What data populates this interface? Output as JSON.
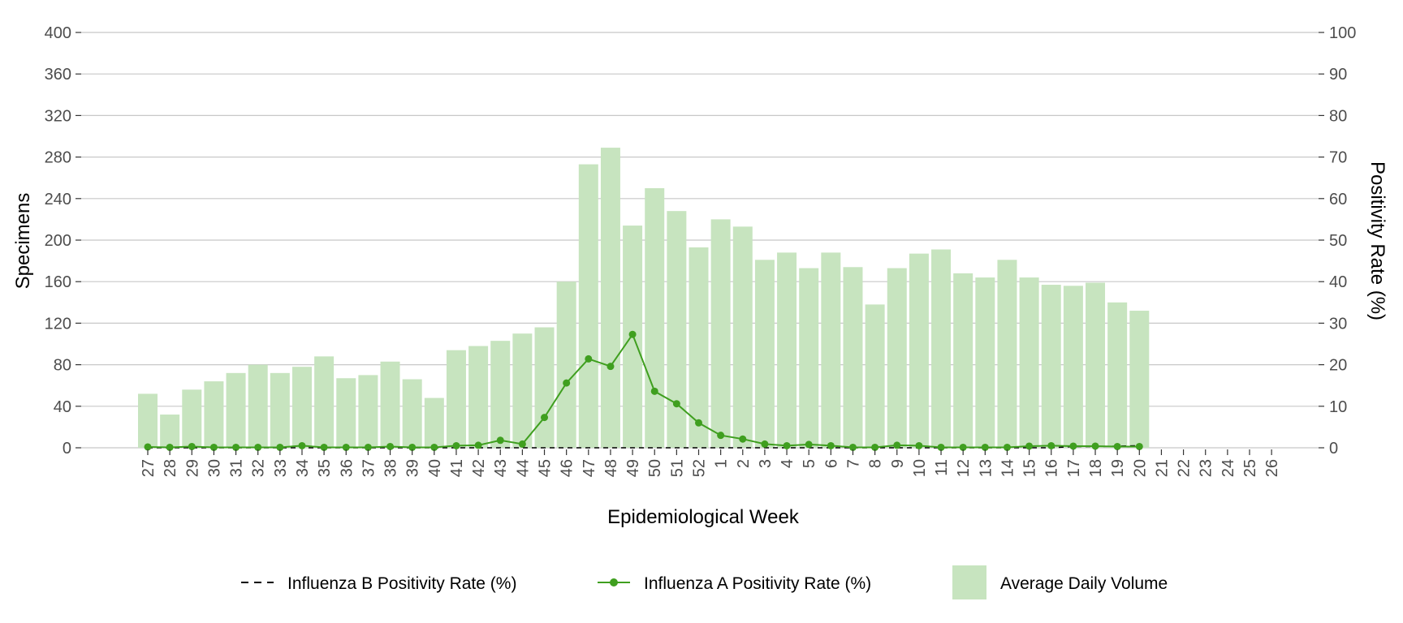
{
  "chart_data": {
    "type": "bar",
    "xlabel": "Epidemiological Week",
    "ylabel": "Specimens",
    "y2label": "Positivity Rate (%)",
    "ylim": [
      0,
      400
    ],
    "y2lim": [
      0,
      100
    ],
    "yticks": [
      "0",
      "40",
      "80",
      "120",
      "160",
      "200",
      "240",
      "280",
      "320",
      "360",
      "400"
    ],
    "y2ticks": [
      "0",
      "10",
      "20",
      "30",
      "40",
      "50",
      "60",
      "70",
      "80",
      "90",
      "100"
    ],
    "grid": true,
    "legend_position": "bottom",
    "categories": [
      "27",
      "28",
      "29",
      "30",
      "31",
      "32",
      "33",
      "34",
      "35",
      "36",
      "37",
      "38",
      "39",
      "40",
      "41",
      "42",
      "43",
      "44",
      "45",
      "46",
      "47",
      "48",
      "49",
      "50",
      "51",
      "52",
      "1",
      "2",
      "3",
      "4",
      "5",
      "6",
      "7",
      "8",
      "9",
      "10",
      "11",
      "12",
      "13",
      "14",
      "15",
      "16",
      "17",
      "18",
      "19",
      "20",
      "21",
      "22",
      "23",
      "24",
      "25",
      "26"
    ],
    "series": [
      {
        "name": "Average Daily Volume",
        "kind": "bar",
        "axis": "left",
        "color": "#c7e4bf",
        "values": [
          52,
          32,
          56,
          64,
          72,
          80,
          72,
          78,
          88,
          67,
          70,
          83,
          66,
          48,
          94,
          98,
          103,
          110,
          116,
          160,
          273,
          289,
          214,
          250,
          228,
          193,
          220,
          213,
          181,
          188,
          173,
          188,
          174,
          138,
          173,
          187,
          191,
          168,
          164,
          181,
          164,
          157,
          156,
          159,
          140,
          132,
          null,
          null,
          null,
          null,
          null,
          null
        ]
      },
      {
        "name": "Influenza A Positivity Rate (%)",
        "kind": "line",
        "axis": "right",
        "color": "#3f9f1f",
        "values": [
          0.2,
          0.1,
          0.3,
          0.1,
          0.1,
          0.1,
          0.1,
          0.5,
          0.1,
          0.1,
          0.1,
          0.3,
          0.1,
          0.1,
          0.5,
          0.6,
          1.8,
          0.9,
          7.3,
          15.6,
          21.4,
          19.6,
          27.3,
          13.6,
          10.6,
          6.0,
          3.0,
          2.1,
          0.9,
          0.5,
          0.8,
          0.5,
          0.1,
          0.1,
          0.6,
          0.5,
          0.1,
          0.1,
          0.1,
          0.1,
          0.4,
          0.5,
          0.4,
          0.4,
          0.3,
          0.3,
          null,
          null,
          null,
          null,
          null,
          null
        ]
      },
      {
        "name": "Influenza B Positivity Rate (%)",
        "kind": "line",
        "axis": "right",
        "dash": true,
        "color": "#000000",
        "values": [
          0,
          0,
          0,
          0,
          0,
          0,
          0,
          0,
          0,
          0,
          0,
          0,
          0,
          0,
          0,
          0,
          0,
          0,
          0,
          0,
          0,
          0,
          0,
          0,
          0,
          0,
          0,
          0,
          0,
          0,
          0,
          0,
          0,
          0,
          0,
          0,
          0,
          0,
          0,
          0,
          0,
          0,
          0.3,
          0.3,
          0.4,
          0.5,
          null,
          null,
          null,
          null,
          null,
          null
        ]
      }
    ]
  }
}
